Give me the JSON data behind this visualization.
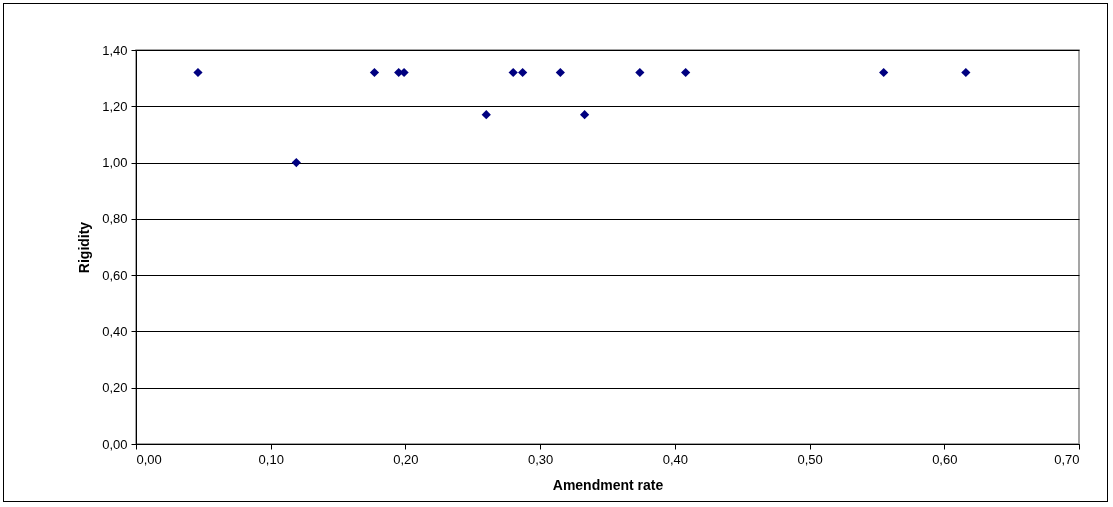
{
  "chart_data": {
    "type": "scatter",
    "xlabel": "Amendment rate",
    "ylabel": "Rigidity",
    "x": [
      0.046,
      0.119,
      0.177,
      0.195,
      0.199,
      0.26,
      0.28,
      0.287,
      0.315,
      0.333,
      0.374,
      0.408,
      0.555,
      0.616
    ],
    "series": [
      {
        "color": "#000080",
        "values": [
          1.32,
          1.0,
          1.32,
          1.32,
          1.32,
          1.17,
          1.32,
          1.32,
          1.32,
          1.17,
          1.32,
          1.32,
          1.32,
          1.32
        ]
      }
    ],
    "xlim": [
      0,
      0.7
    ],
    "xticks": [
      {
        "value": 0,
        "label": "0,00"
      },
      {
        "value": 0.1,
        "label": "0,10"
      },
      {
        "value": 0.2,
        "label": "0,20"
      },
      {
        "value": 0.3,
        "label": "0,30"
      },
      {
        "value": 0.4,
        "label": "0,40"
      },
      {
        "value": 0.5,
        "label": "0,50"
      },
      {
        "value": 0.6,
        "label": "0,60"
      },
      {
        "value": 0.7,
        "label": "0,70"
      }
    ],
    "ylim": [
      0,
      1.4
    ],
    "yticks": [
      {
        "value": 0,
        "label": "0,00"
      },
      {
        "value": 0.2,
        "label": "0,20"
      },
      {
        "value": 0.4,
        "label": "0,40"
      },
      {
        "value": 0.6,
        "label": "0,60"
      },
      {
        "value": 0.8,
        "label": "0,80"
      },
      {
        "value": 1.0,
        "label": "1,00"
      },
      {
        "value": 1.2,
        "label": "1,20"
      },
      {
        "value": 1.4,
        "label": "1,40"
      }
    ],
    "grid": "y",
    "marker": "diamond"
  }
}
